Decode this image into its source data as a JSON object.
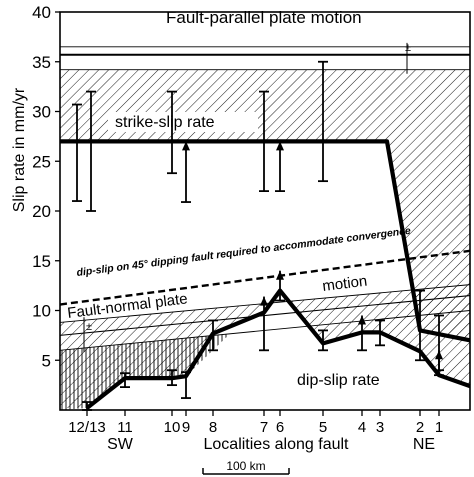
{
  "chart_data": {
    "type": "line",
    "ylabel": "Slip rate in mm/yr",
    "xlabel": "Localities along fault",
    "ylim": [
      0,
      40
    ],
    "y_ticks": [
      5,
      10,
      15,
      20,
      25,
      30,
      35,
      40
    ],
    "direction_labels": {
      "left": "SW",
      "right": "NE"
    },
    "scale_bar_label": "100 km",
    "localities": [
      "12/13",
      "11",
      "10",
      "9",
      "8",
      "7",
      "6",
      "5",
      "4",
      "3",
      "2",
      "1"
    ],
    "annotations": {
      "fault_parallel": "Fault-parallel plate motion",
      "strike_slip": "strike-slip  rate",
      "convergence": "dip-slip on 45° dipping fault required to accommodate convergence",
      "fault_normal": "Fault-normal plate",
      "motion": "motion",
      "dip_slip": "dip-slip  rate",
      "plus_minus": "±"
    },
    "bands": {
      "fault_parallel": {
        "center": 35.7,
        "upper": 36.5,
        "lower": 34.2,
        "zero_line": 0
      },
      "fault_normal": {
        "x": [
          "start",
          "end"
        ],
        "upper": [
          8.8,
          12.6
        ],
        "center": [
          7.5,
          11.5
        ],
        "lower": [
          6.0,
          10.0
        ]
      },
      "convergence_dashed": {
        "x": [
          "start",
          "end"
        ],
        "y": [
          10.6,
          16.0
        ]
      }
    },
    "series": [
      {
        "name": "strike-slip  rate",
        "x": [
          "start",
          "2-",
          "2",
          "end"
        ],
        "y": [
          27,
          27,
          8,
          7
        ]
      },
      {
        "name": "dip-slip  rate",
        "x": [
          "12/13",
          "11",
          "10",
          "9",
          "8",
          "7",
          "6",
          "5",
          "4",
          "3",
          "2",
          "1",
          "end"
        ],
        "y": [
          0.2,
          3.2,
          3.2,
          3.4,
          7.7,
          9.8,
          12.0,
          6.7,
          7.8,
          7.8,
          5.9,
          3.5,
          2.4
        ]
      }
    ],
    "error_bars": [
      {
        "locality": "12/13a",
        "low": 21.0,
        "high": 30.7
      },
      {
        "locality": "12/13b",
        "low": 20.0,
        "high": 32.0
      },
      {
        "locality": "10",
        "low": 23.8,
        "high": 32.0
      },
      {
        "locality": "9",
        "low": 20.9,
        "high": 27.0,
        "arrow": true
      },
      {
        "locality": "7",
        "low": 22.0,
        "high": 32.0
      },
      {
        "locality": "6",
        "low": 22.0,
        "high": 27.0,
        "arrow": true
      },
      {
        "locality": "5",
        "low": 23.0,
        "high": 35.0
      },
      {
        "locality": "2",
        "low": 5.0,
        "high": 12.0
      },
      {
        "locality": "1",
        "low": 4.0,
        "high": 9.5
      },
      {
        "locality": "12/13",
        "low": 0.0,
        "high": 0.8
      },
      {
        "locality": "11",
        "low": 2.3,
        "high": 3.7
      },
      {
        "locality": "10b",
        "low": 2.5,
        "high": 4.0
      },
      {
        "locality": "9b",
        "low": 1.2,
        "high": 3.8
      },
      {
        "locality": "8",
        "low": 6.0,
        "high": 9.0
      },
      {
        "locality": "7b",
        "low": 6.0,
        "high": 11.4,
        "arrow": true
      },
      {
        "locality": "6b",
        "low": 11.0,
        "high": 14.0,
        "arrow": true
      },
      {
        "locality": "5b",
        "low": 6.0,
        "high": 8.0
      },
      {
        "locality": "4",
        "low": 6.0,
        "high": 9.5,
        "arrow": true
      },
      {
        "locality": "3",
        "low": 6.5,
        "high": 9.0
      },
      {
        "locality": "1b",
        "low": 3.5,
        "high": 6.0,
        "arrow": true
      }
    ]
  }
}
